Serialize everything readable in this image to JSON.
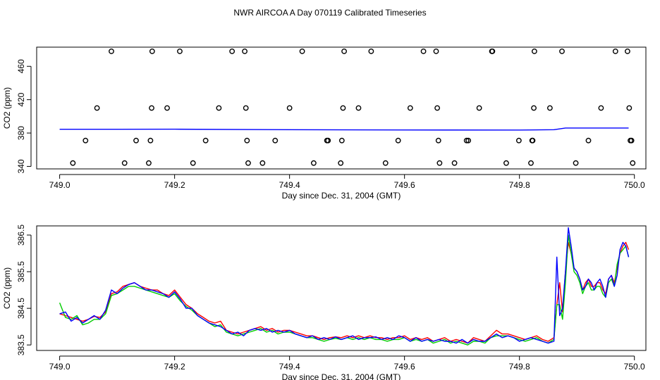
{
  "title": "NWR AIRCOA A  Day 070119  Calibrated Timeseries",
  "colors": {
    "red": "#ff0000",
    "green": "#00cc00",
    "blue": "#0000ff",
    "axis": "#000000"
  },
  "chart_data": [
    {
      "type": "scatter",
      "xlabel": "Day since Dec. 31, 2004 (GMT)",
      "ylabel": "CO2 (ppm)",
      "xlim": [
        748.96,
        750.02
      ],
      "ylim": [
        337,
        483
      ],
      "xticks": [
        {
          "v": 749.0,
          "label": "749.0"
        },
        {
          "v": 749.2,
          "label": "749.2"
        },
        {
          "v": 749.4,
          "label": "749.4"
        },
        {
          "v": 749.6,
          "label": "749.6"
        },
        {
          "v": 749.8,
          "label": "749.8"
        },
        {
          "v": 750.0,
          "label": "750.0"
        }
      ],
      "yticks": [
        {
          "v": 340,
          "label": "340"
        },
        {
          "v": 380,
          "label": "380"
        },
        {
          "v": 420,
          "label": "420"
        },
        {
          "v": 460,
          "label": "460"
        }
      ],
      "circles": [
        [
          749.023,
          344
        ],
        [
          749.045,
          371
        ],
        [
          749.065,
          410
        ],
        [
          749.09,
          478
        ],
        [
          749.113,
          344
        ],
        [
          749.133,
          371
        ],
        [
          749.155,
          344
        ],
        [
          749.158,
          371
        ],
        [
          749.16,
          410
        ],
        [
          749.161,
          478
        ],
        [
          749.187,
          410
        ],
        [
          749.209,
          478
        ],
        [
          749.232,
          344
        ],
        [
          749.254,
          371
        ],
        [
          749.277,
          410
        ],
        [
          749.3,
          478
        ],
        [
          749.322,
          478
        ],
        [
          749.324,
          410
        ],
        [
          749.326,
          371
        ],
        [
          749.328,
          344
        ],
        [
          749.353,
          344
        ],
        [
          749.375,
          371
        ],
        [
          749.4,
          410
        ],
        [
          749.422,
          478
        ],
        [
          749.442,
          344
        ],
        [
          749.465,
          371
        ],
        [
          749.467,
          371
        ],
        [
          749.489,
          344
        ],
        [
          749.491,
          371
        ],
        [
          749.493,
          410
        ],
        [
          749.495,
          478
        ],
        [
          749.52,
          410
        ],
        [
          749.542,
          478
        ],
        [
          749.567,
          344
        ],
        [
          749.589,
          371
        ],
        [
          749.61,
          410
        ],
        [
          749.633,
          478
        ],
        [
          749.655,
          478
        ],
        [
          749.657,
          410
        ],
        [
          749.659,
          371
        ],
        [
          749.661,
          344
        ],
        [
          749.687,
          344
        ],
        [
          749.708,
          371
        ],
        [
          749.711,
          371
        ],
        [
          749.73,
          410
        ],
        [
          749.752,
          478
        ],
        [
          749.753,
          478
        ],
        [
          749.777,
          344
        ],
        [
          749.799,
          371
        ],
        [
          749.82,
          344
        ],
        [
          749.822,
          371
        ],
        [
          749.823,
          371
        ],
        [
          749.825,
          410
        ],
        [
          749.826,
          478
        ],
        [
          749.853,
          410
        ],
        [
          749.874,
          478
        ],
        [
          749.898,
          344
        ],
        [
          749.92,
          371
        ],
        [
          749.942,
          410
        ],
        [
          749.967,
          478
        ],
        [
          749.988,
          478
        ],
        [
          749.991,
          410
        ],
        [
          749.993,
          371
        ],
        [
          749.995,
          371
        ],
        [
          749.997,
          344
        ]
      ],
      "series": [
        {
          "color": "blue",
          "x": [
            749.0,
            749.1,
            749.2,
            749.4,
            749.6,
            749.8,
            749.86,
            749.88,
            749.95,
            749.99
          ],
          "y": [
            384.5,
            384.5,
            384.6,
            384.0,
            383.7,
            383.6,
            384.0,
            386.0,
            386.0,
            386.0
          ]
        }
      ]
    },
    {
      "type": "line",
      "xlabel": "Day since Dec. 31, 2004 (GMT)",
      "ylabel": "CO2 (ppm)",
      "xlim": [
        748.96,
        750.02
      ],
      "ylim": [
        383.35,
        386.75
      ],
      "xticks": [
        {
          "v": 749.0,
          "label": "749.0"
        },
        {
          "v": 749.2,
          "label": "749.2"
        },
        {
          "v": 749.4,
          "label": "749.4"
        },
        {
          "v": 749.6,
          "label": "749.6"
        },
        {
          "v": 749.8,
          "label": "749.8"
        },
        {
          "v": 750.0,
          "label": "750.0"
        }
      ],
      "yticks": [
        {
          "v": 383.5,
          "label": "383.5"
        },
        {
          "v": 384.5,
          "label": "384.5"
        },
        {
          "v": 385.5,
          "label": "385.5"
        },
        {
          "v": 386.5,
          "label": "386.5"
        }
      ],
      "series": [
        {
          "color": "red",
          "x": [
            749.0,
            749.01,
            749.02,
            749.03,
            749.04,
            749.05,
            749.06,
            749.07,
            749.08,
            749.09,
            749.1,
            749.11,
            749.12,
            749.13,
            749.14,
            749.15,
            749.16,
            749.17,
            749.18,
            749.19,
            749.2,
            749.21,
            749.22,
            749.23,
            749.24,
            749.25,
            749.26,
            749.27,
            749.28,
            749.29,
            749.3,
            749.31,
            749.32,
            749.33,
            749.34,
            749.35,
            749.36,
            749.37,
            749.38,
            749.39,
            749.4,
            749.41,
            749.42,
            749.43,
            749.44,
            749.45,
            749.46,
            749.47,
            749.48,
            749.49,
            749.5,
            749.51,
            749.52,
            749.53,
            749.54,
            749.55,
            749.56,
            749.57,
            749.58,
            749.59,
            749.6,
            749.61,
            749.62,
            749.63,
            749.64,
            749.65,
            749.66,
            749.67,
            749.68,
            749.69,
            749.7,
            749.71,
            749.72,
            749.73,
            749.74,
            749.75,
            749.76,
            749.77,
            749.78,
            749.79,
            749.8,
            749.81,
            749.82,
            749.83,
            749.84,
            749.85,
            749.86,
            749.865,
            749.87,
            749.875,
            749.88,
            749.885,
            749.89,
            749.895,
            749.9,
            749.905,
            749.91,
            749.915,
            749.92,
            749.925,
            749.93,
            749.935,
            749.94,
            749.945,
            749.95,
            749.955,
            749.96,
            749.965,
            749.97,
            749.975,
            749.98,
            749.985,
            749.99
          ],
          "y": [
            384.35,
            384.3,
            384.25,
            384.2,
            384.15,
            384.2,
            384.28,
            384.25,
            384.4,
            384.9,
            384.95,
            385.1,
            385.15,
            385.2,
            385.1,
            385.05,
            385.0,
            385.0,
            384.9,
            384.85,
            385.0,
            384.8,
            384.6,
            384.5,
            384.35,
            384.25,
            384.15,
            384.1,
            384.15,
            383.9,
            383.85,
            383.8,
            383.85,
            383.9,
            383.95,
            384.0,
            383.9,
            383.95,
            383.85,
            383.9,
            383.9,
            383.85,
            383.8,
            383.75,
            383.75,
            383.7,
            383.65,
            383.7,
            383.72,
            383.7,
            383.75,
            383.7,
            383.75,
            383.7,
            383.75,
            383.7,
            383.7,
            383.65,
            383.7,
            383.7,
            383.75,
            383.65,
            383.7,
            383.65,
            383.7,
            383.6,
            383.65,
            383.7,
            383.6,
            383.65,
            383.6,
            383.55,
            383.7,
            383.65,
            383.6,
            383.75,
            383.9,
            383.8,
            383.8,
            383.75,
            383.7,
            383.65,
            383.7,
            383.75,
            383.65,
            383.6,
            383.7,
            384.6,
            385.2,
            384.4,
            385.5,
            386.3,
            386.0,
            385.6,
            385.5,
            385.3,
            385.0,
            385.2,
            385.3,
            385.1,
            385.1,
            385.2,
            385.2,
            385.0,
            384.9,
            385.3,
            385.4,
            385.2,
            385.6,
            386.0,
            386.2,
            386.3,
            386.1
          ]
        },
        {
          "color": "green",
          "x": [
            749.0,
            749.01,
            749.02,
            749.03,
            749.04,
            749.05,
            749.06,
            749.07,
            749.08,
            749.09,
            749.1,
            749.11,
            749.12,
            749.13,
            749.14,
            749.15,
            749.16,
            749.17,
            749.18,
            749.19,
            749.2,
            749.21,
            749.22,
            749.23,
            749.24,
            749.25,
            749.26,
            749.27,
            749.28,
            749.29,
            749.3,
            749.31,
            749.32,
            749.33,
            749.34,
            749.35,
            749.36,
            749.37,
            749.38,
            749.39,
            749.4,
            749.41,
            749.42,
            749.43,
            749.44,
            749.45,
            749.46,
            749.47,
            749.48,
            749.49,
            749.5,
            749.51,
            749.52,
            749.53,
            749.54,
            749.55,
            749.56,
            749.57,
            749.58,
            749.59,
            749.6,
            749.61,
            749.62,
            749.63,
            749.64,
            749.65,
            749.66,
            749.67,
            749.68,
            749.69,
            749.7,
            749.71,
            749.72,
            749.73,
            749.74,
            749.75,
            749.76,
            749.77,
            749.78,
            749.79,
            749.8,
            749.81,
            749.82,
            749.83,
            749.84,
            749.85,
            749.86,
            749.865,
            749.87,
            749.875,
            749.88,
            749.885,
            749.89,
            749.895,
            749.9,
            749.905,
            749.91,
            749.915,
            749.92,
            749.925,
            749.93,
            749.935,
            749.94,
            749.945,
            749.95,
            749.955,
            749.96,
            749.965,
            749.97,
            749.975,
            749.98,
            749.985,
            749.99
          ],
          "y": [
            384.65,
            384.25,
            384.2,
            384.3,
            384.05,
            384.1,
            384.2,
            384.2,
            384.35,
            384.85,
            384.9,
            385.0,
            385.1,
            385.1,
            385.05,
            385.0,
            384.95,
            384.9,
            384.85,
            384.8,
            384.9,
            384.7,
            384.55,
            384.45,
            384.3,
            384.2,
            384.1,
            384.0,
            384.05,
            383.85,
            383.8,
            383.75,
            383.8,
            383.85,
            383.9,
            383.95,
            383.85,
            383.9,
            383.8,
            383.85,
            383.85,
            383.8,
            383.75,
            383.7,
            383.7,
            383.65,
            383.6,
            383.65,
            383.68,
            383.65,
            383.7,
            383.65,
            383.7,
            383.65,
            383.7,
            383.65,
            383.65,
            383.6,
            383.65,
            383.65,
            383.7,
            383.6,
            383.65,
            383.6,
            383.65,
            383.55,
            383.6,
            383.65,
            383.55,
            383.6,
            383.55,
            383.5,
            383.6,
            383.6,
            383.55,
            383.7,
            383.75,
            383.75,
            383.75,
            383.7,
            383.65,
            383.6,
            383.65,
            383.7,
            383.6,
            383.55,
            383.65,
            384.6,
            384.6,
            384.2,
            385.2,
            386.5,
            386.0,
            385.5,
            385.4,
            385.2,
            384.9,
            385.1,
            385.2,
            385.0,
            385.0,
            385.1,
            385.1,
            384.9,
            384.8,
            385.2,
            385.3,
            385.1,
            385.7,
            386.0,
            386.1,
            386.2,
            385.9
          ]
        },
        {
          "color": "blue",
          "x": [
            749.0,
            749.01,
            749.02,
            749.03,
            749.04,
            749.05,
            749.06,
            749.07,
            749.08,
            749.09,
            749.1,
            749.11,
            749.12,
            749.13,
            749.14,
            749.15,
            749.16,
            749.17,
            749.18,
            749.19,
            749.2,
            749.21,
            749.22,
            749.23,
            749.24,
            749.25,
            749.26,
            749.27,
            749.28,
            749.29,
            749.3,
            749.31,
            749.32,
            749.33,
            749.34,
            749.35,
            749.36,
            749.37,
            749.38,
            749.39,
            749.4,
            749.41,
            749.42,
            749.43,
            749.44,
            749.45,
            749.46,
            749.47,
            749.48,
            749.49,
            749.5,
            749.51,
            749.52,
            749.53,
            749.54,
            749.55,
            749.56,
            749.57,
            749.58,
            749.59,
            749.6,
            749.61,
            749.62,
            749.63,
            749.64,
            749.65,
            749.66,
            749.67,
            749.68,
            749.69,
            749.7,
            749.71,
            749.72,
            749.73,
            749.74,
            749.75,
            749.76,
            749.77,
            749.78,
            749.79,
            749.8,
            749.81,
            749.82,
            749.83,
            749.84,
            749.85,
            749.86,
            749.865,
            749.87,
            749.875,
            749.88,
            749.885,
            749.89,
            749.895,
            749.9,
            749.905,
            749.91,
            749.915,
            749.92,
            749.925,
            749.93,
            749.935,
            749.94,
            749.945,
            749.95,
            749.955,
            749.96,
            749.965,
            749.97,
            749.975,
            749.98,
            749.985,
            749.99
          ],
          "y": [
            384.35,
            384.4,
            384.15,
            384.25,
            384.1,
            384.2,
            384.3,
            384.2,
            384.45,
            385.0,
            384.9,
            385.05,
            385.15,
            385.2,
            385.1,
            385.0,
            385.0,
            384.95,
            384.9,
            384.8,
            384.95,
            384.75,
            384.5,
            384.5,
            384.3,
            384.2,
            384.1,
            384.05,
            384.0,
            383.9,
            383.8,
            383.85,
            383.75,
            383.9,
            383.95,
            383.9,
            383.95,
            383.85,
            383.9,
            383.85,
            383.9,
            383.8,
            383.75,
            383.7,
            383.75,
            383.65,
            383.7,
            383.65,
            383.72,
            383.65,
            383.7,
            383.75,
            383.65,
            383.7,
            383.7,
            383.72,
            383.65,
            383.7,
            383.65,
            383.75,
            383.7,
            383.6,
            383.7,
            383.6,
            383.65,
            383.6,
            383.65,
            383.6,
            383.6,
            383.55,
            383.65,
            383.55,
            383.65,
            383.6,
            383.6,
            383.7,
            383.8,
            383.7,
            383.75,
            383.7,
            383.6,
            383.65,
            383.7,
            383.65,
            383.6,
            383.55,
            383.6,
            385.9,
            384.3,
            384.5,
            385.5,
            386.7,
            386.2,
            385.6,
            385.5,
            385.3,
            385.0,
            385.1,
            385.3,
            385.2,
            385.0,
            385.2,
            385.3,
            385.1,
            384.8,
            385.3,
            385.4,
            385.1,
            385.4,
            386.1,
            386.3,
            386.2,
            385.9
          ]
        }
      ]
    }
  ]
}
